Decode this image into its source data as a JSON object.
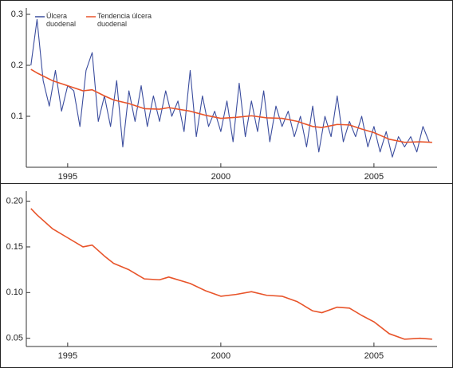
{
  "chart_data": [
    {
      "type": "line",
      "xlim": [
        1993.65,
        2007.06
      ],
      "xticks": [
        1995,
        2000,
        2005
      ],
      "ylim": [
        0,
        0.3125
      ],
      "yticks": [
        0.1,
        0.2,
        0.3
      ],
      "legend": "top-left",
      "series": [
        {
          "name": "Úlcera duodenal",
          "color": "#3b4d9e",
          "x": [
            1993.8,
            1994.0,
            1994.2,
            1994.4,
            1994.6,
            1994.8,
            1995.0,
            1995.2,
            1995.4,
            1995.6,
            1995.8,
            1996.0,
            1996.2,
            1996.4,
            1996.6,
            1996.8,
            1997.0,
            1997.2,
            1997.4,
            1997.6,
            1997.8,
            1998.0,
            1998.2,
            1998.4,
            1998.6,
            1998.8,
            1999.0,
            1999.2,
            1999.4,
            1999.6,
            1999.8,
            2000.0,
            2000.2,
            2000.4,
            2000.6,
            2000.8,
            2001.0,
            2001.2,
            2001.4,
            2001.6,
            2001.8,
            2002.0,
            2002.2,
            2002.4,
            2002.6,
            2002.8,
            2003.0,
            2003.2,
            2003.4,
            2003.6,
            2003.8,
            2004.0,
            2004.2,
            2004.4,
            2004.6,
            2004.8,
            2005.0,
            2005.2,
            2005.4,
            2005.6,
            2005.8,
            2006.0,
            2006.2,
            2006.4,
            2006.6,
            2006.8
          ],
          "values": [
            0.2,
            0.29,
            0.17,
            0.12,
            0.19,
            0.11,
            0.16,
            0.15,
            0.08,
            0.19,
            0.225,
            0.09,
            0.14,
            0.08,
            0.17,
            0.04,
            0.15,
            0.09,
            0.16,
            0.08,
            0.14,
            0.09,
            0.15,
            0.1,
            0.13,
            0.07,
            0.19,
            0.06,
            0.14,
            0.08,
            0.11,
            0.07,
            0.13,
            0.05,
            0.165,
            0.06,
            0.13,
            0.07,
            0.15,
            0.05,
            0.12,
            0.08,
            0.11,
            0.06,
            0.1,
            0.04,
            0.12,
            0.03,
            0.1,
            0.06,
            0.14,
            0.05,
            0.09,
            0.06,
            0.1,
            0.04,
            0.08,
            0.03,
            0.07,
            0.02,
            0.06,
            0.04,
            0.06,
            0.03,
            0.08,
            0.05
          ]
        },
        {
          "name": "Tendencia úlcera duodenal",
          "color": "#e8542a",
          "x": [
            1993.8,
            1994.0,
            1994.5,
            1995.0,
            1995.5,
            1995.8,
            1996.2,
            1996.5,
            1997.0,
            1997.5,
            1998.0,
            1998.3,
            1999.0,
            1999.5,
            2000.0,
            2000.5,
            2001.0,
            2001.5,
            2002.0,
            2002.5,
            2003.0,
            2003.3,
            2003.8,
            2004.2,
            2004.6,
            2005.0,
            2005.5,
            2006.0,
            2006.5,
            2006.9
          ],
          "values": [
            0.192,
            0.185,
            0.17,
            0.16,
            0.15,
            0.152,
            0.14,
            0.132,
            0.125,
            0.115,
            0.114,
            0.117,
            0.11,
            0.102,
            0.096,
            0.098,
            0.101,
            0.097,
            0.096,
            0.09,
            0.08,
            0.078,
            0.084,
            0.083,
            0.075,
            0.068,
            0.055,
            0.049,
            0.05,
            0.049
          ]
        }
      ]
    },
    {
      "type": "line",
      "xlim": [
        1993.65,
        2007.06
      ],
      "xticks": [
        1995,
        2000,
        2005
      ],
      "ylim": [
        0.041,
        0.211
      ],
      "yticks": [
        0.05,
        0.15,
        {
          "value": 0.1,
          "label": "0.10"
        },
        {
          "value": 0.2,
          "label": "0.20"
        }
      ],
      "series": [
        {
          "color": "#e8542a",
          "x": [
            1993.8,
            1994.0,
            1994.5,
            1995.0,
            1995.5,
            1995.8,
            1996.2,
            1996.5,
            1997.0,
            1997.5,
            1998.0,
            1998.3,
            1999.0,
            1999.5,
            2000.0,
            2000.5,
            2001.0,
            2001.5,
            2002.0,
            2002.5,
            2003.0,
            2003.3,
            2003.8,
            2004.2,
            2004.6,
            2005.0,
            2005.5,
            2006.0,
            2006.5,
            2006.9
          ],
          "values": [
            0.192,
            0.185,
            0.17,
            0.16,
            0.15,
            0.152,
            0.14,
            0.132,
            0.125,
            0.115,
            0.114,
            0.117,
            0.11,
            0.102,
            0.096,
            0.098,
            0.101,
            0.097,
            0.096,
            0.09,
            0.08,
            0.078,
            0.084,
            0.083,
            0.075,
            0.068,
            0.055,
            0.049,
            0.05,
            0.049
          ]
        }
      ]
    }
  ]
}
